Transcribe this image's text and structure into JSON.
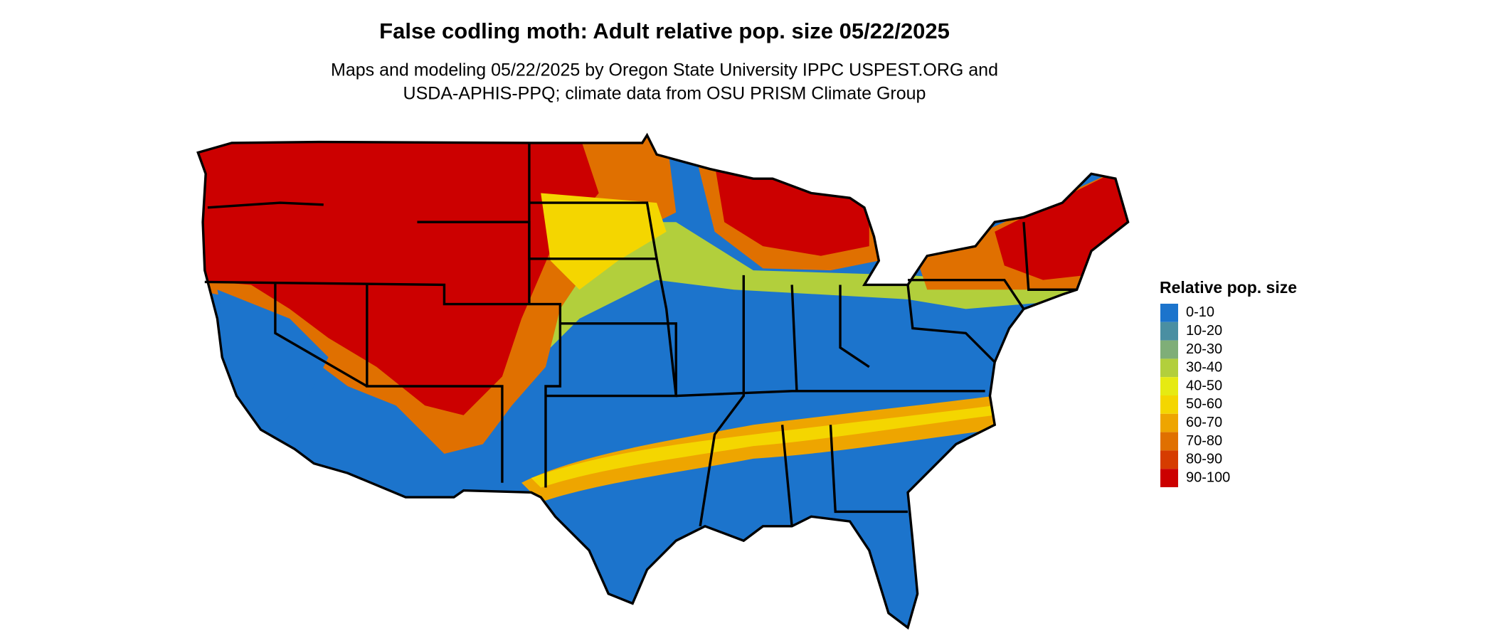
{
  "header": {
    "title": "False codling moth: Adult relative pop. size 05/22/2025",
    "subtitle_lines": [
      "Maps and modeling 05/22/2025 by Oregon State University IPPC USPEST.ORG and",
      "USDA-APHIS-PPQ; climate data from OSU PRISM Climate Group"
    ]
  },
  "legend": {
    "title": "Relative pop. size",
    "items": [
      {
        "label": "0-10",
        "color": "#1c74cc"
      },
      {
        "label": "10-20",
        "color": "#4a8fa2"
      },
      {
        "label": "20-30",
        "color": "#7fae78"
      },
      {
        "label": "30-40",
        "color": "#b2cf3c"
      },
      {
        "label": "40-50",
        "color": "#e6ea12"
      },
      {
        "label": "50-60",
        "color": "#f4d600"
      },
      {
        "label": "60-70",
        "color": "#eea500"
      },
      {
        "label": "70-80",
        "color": "#e07000"
      },
      {
        "label": "80-90",
        "color": "#d63c00"
      },
      {
        "label": "90-100",
        "color": "#cc0000"
      }
    ]
  }
}
